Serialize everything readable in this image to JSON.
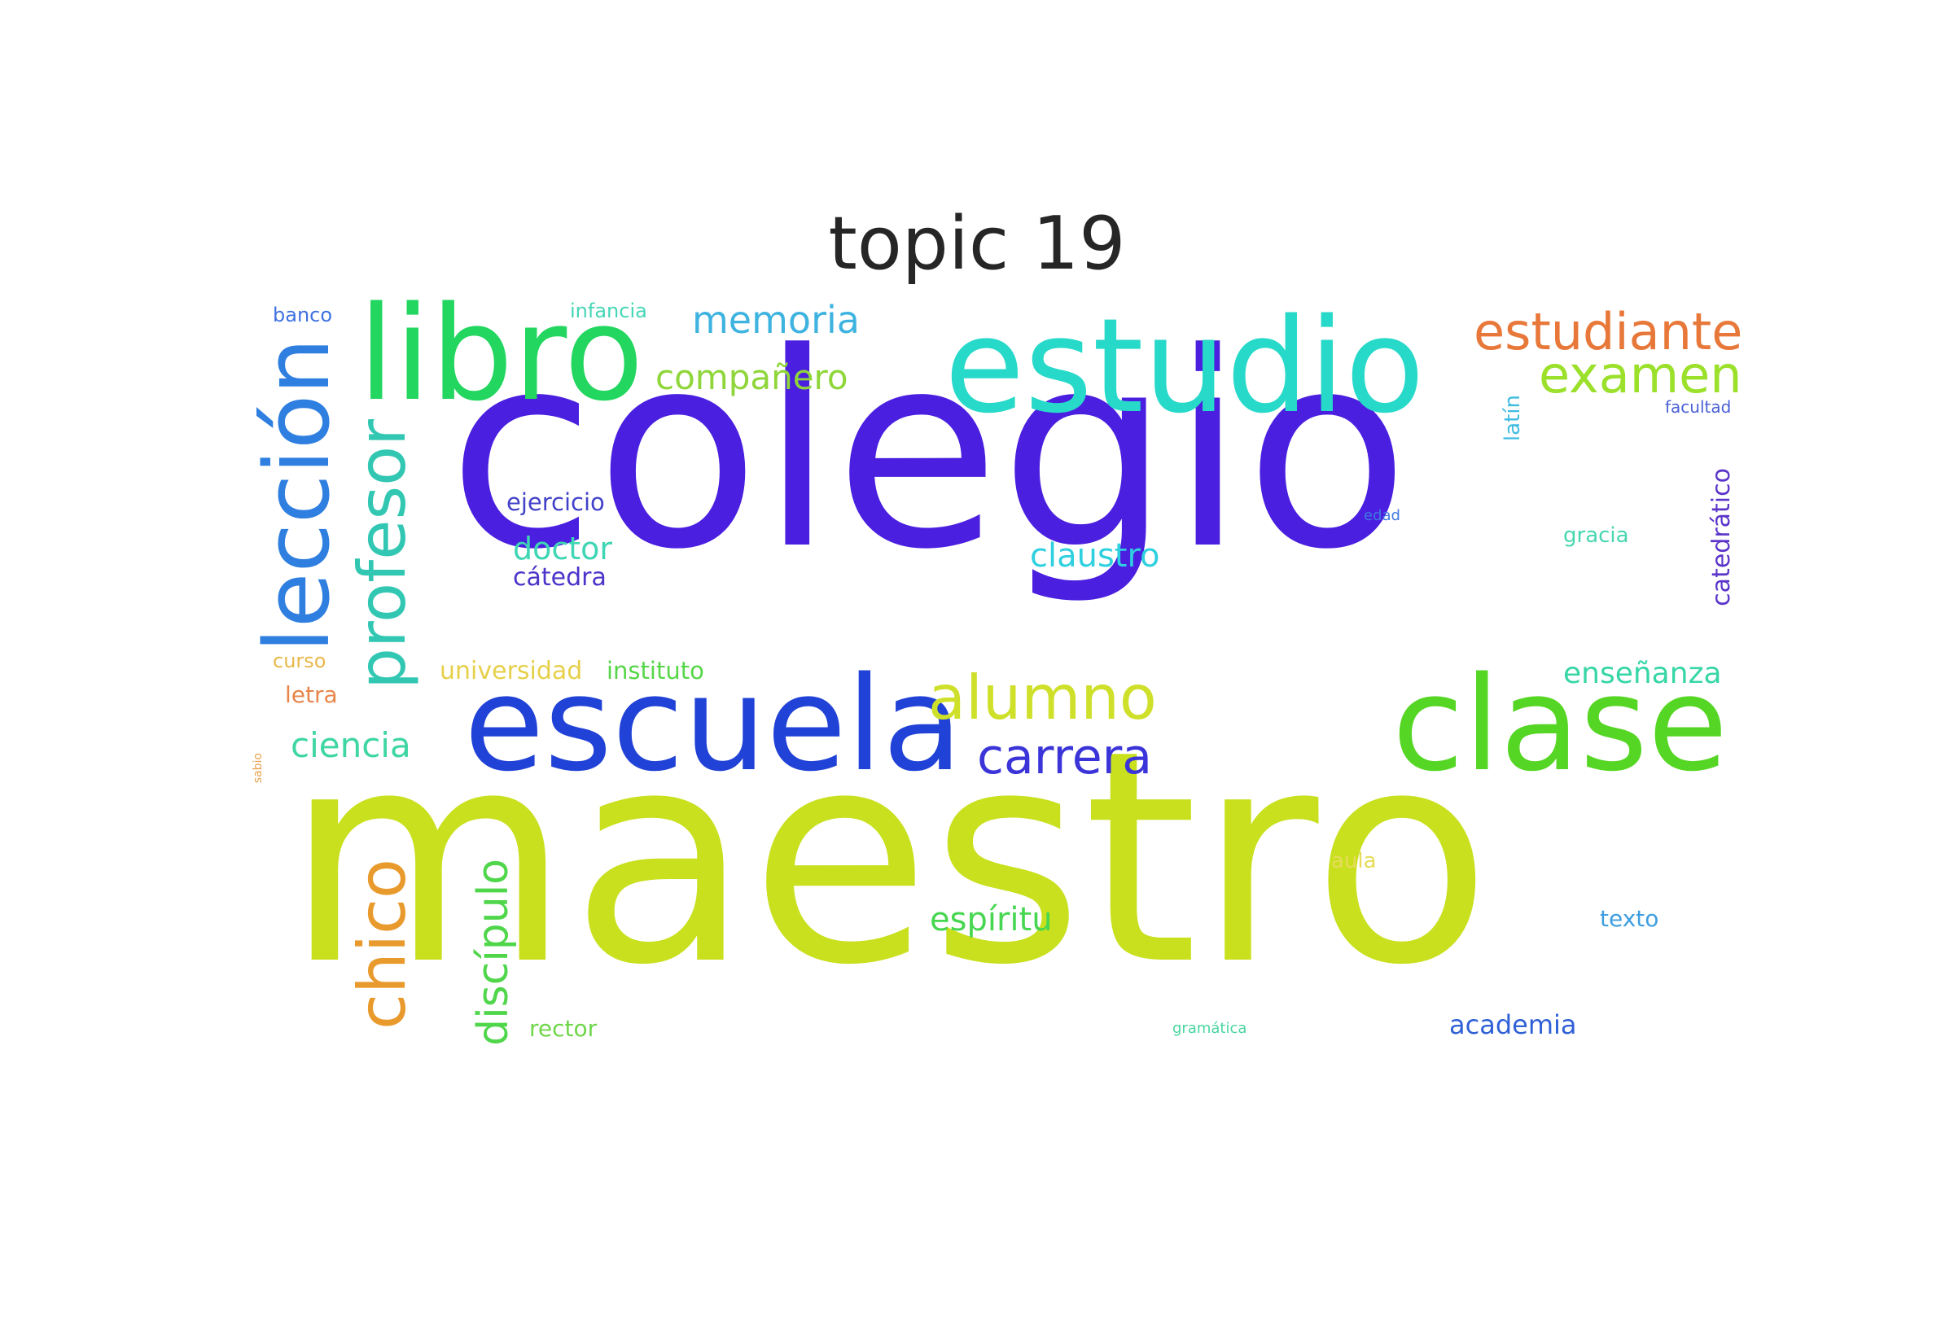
{
  "title": "topic 19",
  "words": [
    {
      "text": "maestro",
      "color": "#c9e01f"
    },
    {
      "text": "colegio",
      "color": "#4a1fe0"
    },
    {
      "text": "escuela",
      "color": "#2142d6"
    },
    {
      "text": "estudio",
      "color": "#27d9c9"
    },
    {
      "text": "libro",
      "color": "#22d65f"
    },
    {
      "text": "clase",
      "color": "#56d624"
    },
    {
      "text": "lección",
      "color": "#2f7fe0"
    },
    {
      "text": "profesor",
      "color": "#32c7b2"
    },
    {
      "text": "chico",
      "color": "#e89a2c"
    },
    {
      "text": "alumno",
      "color": "#cfe02a"
    },
    {
      "text": "estudiante",
      "color": "#e8783a"
    },
    {
      "text": "examen",
      "color": "#9be02a"
    },
    {
      "text": "carrera",
      "color": "#3a34d9"
    },
    {
      "text": "discípulo",
      "color": "#4fd64a"
    },
    {
      "text": "memoria",
      "color": "#3fb3e0"
    },
    {
      "text": "compañero",
      "color": "#8fd63a"
    },
    {
      "text": "enseñanza",
      "color": "#37d6a6"
    },
    {
      "text": "claustro",
      "color": "#2fd0e0"
    },
    {
      "text": "espíritu",
      "color": "#46d650"
    },
    {
      "text": "ciencia",
      "color": "#3ed6a2"
    },
    {
      "text": "doctor",
      "color": "#3ed6b4"
    },
    {
      "text": "cátedra",
      "color": "#4a34c9"
    },
    {
      "text": "catedrático",
      "color": "#5a34c9"
    },
    {
      "text": "academia",
      "color": "#2f60d6"
    },
    {
      "text": "ejercicio",
      "color": "#4242c9"
    },
    {
      "text": "instituto",
      "color": "#56d648"
    },
    {
      "text": "universidad",
      "color": "#e6d04a"
    },
    {
      "text": "texto",
      "color": "#3f9ee0"
    },
    {
      "text": "latín",
      "color": "#3fbbe0"
    },
    {
      "text": "gracia",
      "color": "#48d6b0"
    },
    {
      "text": "aula",
      "color": "#e6dc5a"
    },
    {
      "text": "infancia",
      "color": "#46d6b6"
    },
    {
      "text": "banco",
      "color": "#3f72e0"
    },
    {
      "text": "curso",
      "color": "#e8b84a"
    },
    {
      "text": "letra",
      "color": "#e8864a"
    },
    {
      "text": "rector",
      "color": "#6fd64a"
    },
    {
      "text": "facultad",
      "color": "#4a5fd6"
    },
    {
      "text": "edad",
      "color": "#3f78e0"
    },
    {
      "text": "gramática",
      "color": "#48d6a0"
    },
    {
      "text": "sabio",
      "color": "#e8a04a"
    }
  ]
}
